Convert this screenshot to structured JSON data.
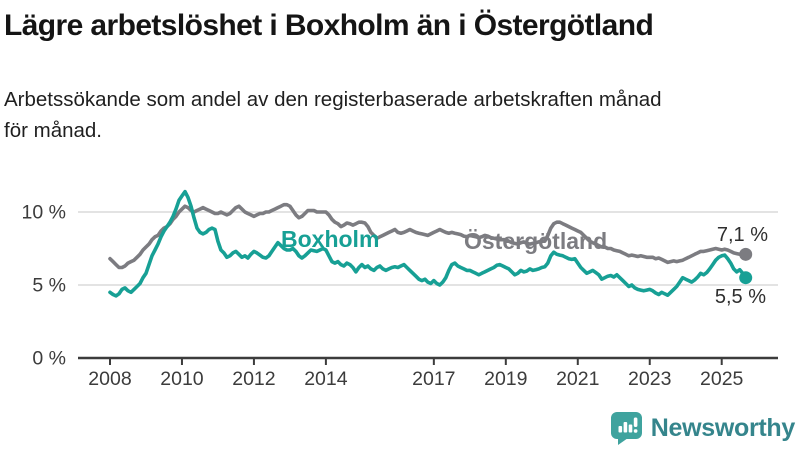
{
  "header": {
    "title": "Lägre arbetslöshet i Boxholm än i Östergötland",
    "subtitle_line1": "Arbetssökande som andel av den registerbaserade arbetskraften månad",
    "subtitle_line2": "för månad."
  },
  "annotations": {
    "boxholm_label": "Boxholm",
    "ostergotland_label": "Östergötland",
    "ostergotland_end_value": "7,1 %",
    "boxholm_end_value": "5,5 %"
  },
  "footer": {
    "brand_name": "Newsworthy",
    "brand_icon": "bar-chart-speech-bubble",
    "brand_icon_color": "#3fa39e",
    "brand_text_color": "#35858c"
  },
  "chart_data": {
    "type": "line",
    "title": "Lägre arbetslöshet i Boxholm än i Östergötland",
    "subtitle": "Arbetssökande som andel av den registerbaserade arbetskraften månad för månad.",
    "x_unit": "month",
    "x_start": "2008-01",
    "x_end": "2025-09",
    "points_per_year": 12,
    "ylim": [
      0,
      12
    ],
    "grid": "horizontal-only",
    "legend_position": "inline-labels",
    "y_ticks": [
      {
        "value": 0,
        "label": "0 %"
      },
      {
        "value": 5,
        "label": "5 %"
      },
      {
        "value": 10,
        "label": "10 %"
      }
    ],
    "x_ticks": [
      {
        "value": 2008,
        "label": "2008"
      },
      {
        "value": 2010,
        "label": "2010"
      },
      {
        "value": 2012,
        "label": "2012"
      },
      {
        "value": 2014,
        "label": "2014"
      },
      {
        "value": 2017,
        "label": "2017"
      },
      {
        "value": 2019,
        "label": "2019"
      },
      {
        "value": 2021,
        "label": "2021"
      },
      {
        "value": 2023,
        "label": "2023"
      },
      {
        "value": 2025,
        "label": "2025"
      }
    ],
    "series": [
      {
        "name": "Östergötland",
        "color": "#7c7c81",
        "end_label": "7,1 %",
        "end_value": 7.1,
        "values": [
          6.8,
          6.6,
          6.4,
          6.2,
          6.2,
          6.3,
          6.5,
          6.6,
          6.7,
          6.9,
          7.1,
          7.4,
          7.6,
          7.8,
          8.1,
          8.3,
          8.4,
          8.7,
          8.9,
          9.0,
          9.2,
          9.5,
          9.7,
          10.0,
          10.2,
          10.4,
          10.3,
          10.1,
          10.0,
          10.1,
          10.2,
          10.3,
          10.2,
          10.1,
          10.0,
          9.9,
          9.9,
          10.0,
          9.9,
          9.8,
          9.9,
          10.1,
          10.3,
          10.4,
          10.2,
          10.0,
          9.9,
          9.8,
          9.7,
          9.8,
          9.9,
          9.9,
          10.0,
          10.0,
          10.1,
          10.2,
          10.3,
          10.4,
          10.5,
          10.5,
          10.4,
          10.1,
          9.8,
          9.6,
          9.7,
          9.9,
          10.1,
          10.1,
          10.1,
          10.0,
          10.0,
          10.0,
          10.0,
          9.8,
          9.5,
          9.3,
          9.2,
          9.0,
          9.1,
          9.25,
          9.2,
          9.1,
          9.2,
          9.3,
          9.3,
          9.25,
          9.0,
          8.6,
          8.4,
          8.2,
          8.3,
          8.4,
          8.5,
          8.6,
          8.7,
          8.8,
          8.6,
          8.55,
          8.6,
          8.7,
          8.8,
          8.7,
          8.6,
          8.55,
          8.5,
          8.45,
          8.4,
          8.5,
          8.6,
          8.7,
          8.8,
          8.7,
          8.6,
          8.55,
          8.6,
          8.55,
          8.5,
          8.45,
          8.35,
          8.3,
          8.4,
          8.35,
          8.3,
          8.25,
          8.3,
          8.4,
          8.35,
          8.25,
          8.2,
          8.15,
          8.1,
          8.1,
          8.1,
          8.0,
          7.9,
          7.85,
          7.8,
          7.9,
          7.95,
          7.85,
          7.8,
          7.85,
          7.9,
          7.95,
          8.0,
          8.0,
          8.4,
          8.9,
          9.2,
          9.3,
          9.3,
          9.2,
          9.1,
          9.0,
          8.9,
          8.8,
          8.7,
          8.6,
          8.4,
          8.2,
          8.0,
          7.9,
          7.8,
          7.7,
          7.6,
          7.6,
          7.5,
          7.5,
          7.4,
          7.35,
          7.3,
          7.2,
          7.1,
          7.0,
          7.05,
          7.0,
          6.95,
          7.0,
          6.95,
          6.9,
          6.9,
          6.9,
          6.8,
          6.85,
          6.75,
          6.65,
          6.55,
          6.6,
          6.65,
          6.6,
          6.65,
          6.7,
          6.8,
          6.9,
          7.0,
          7.1,
          7.2,
          7.3,
          7.3,
          7.35,
          7.4,
          7.45,
          7.5,
          7.45,
          7.4,
          7.45,
          7.4,
          7.3,
          7.2,
          7.15,
          7.1,
          7.05,
          7.1
        ]
      },
      {
        "name": "Boxholm",
        "color": "#17a095",
        "end_label": "5,5 %",
        "end_value": 5.5,
        "values": [
          4.5,
          4.35,
          4.25,
          4.4,
          4.7,
          4.8,
          4.6,
          4.5,
          4.7,
          4.9,
          5.1,
          5.5,
          5.8,
          6.4,
          7.0,
          7.4,
          7.8,
          8.3,
          8.7,
          9.0,
          9.3,
          9.7,
          10.2,
          10.8,
          11.1,
          11.4,
          11.0,
          10.4,
          9.6,
          8.9,
          8.6,
          8.5,
          8.6,
          8.8,
          8.9,
          8.8,
          8.0,
          7.4,
          7.2,
          6.9,
          7.0,
          7.2,
          7.3,
          7.1,
          6.9,
          7.0,
          6.85,
          7.1,
          7.3,
          7.2,
          7.05,
          6.9,
          6.85,
          7.0,
          7.3,
          7.6,
          7.9,
          7.7,
          7.5,
          7.4,
          7.4,
          7.5,
          7.3,
          7.0,
          6.85,
          7.0,
          7.2,
          7.4,
          7.35,
          7.3,
          7.4,
          7.5,
          7.4,
          7.0,
          6.6,
          6.5,
          6.6,
          6.4,
          6.3,
          6.5,
          6.4,
          6.2,
          5.9,
          6.2,
          6.4,
          6.2,
          6.3,
          6.1,
          6.0,
          6.2,
          6.3,
          6.1,
          6.0,
          6.1,
          6.2,
          6.25,
          6.2,
          6.3,
          6.4,
          6.2,
          6.0,
          5.8,
          5.6,
          5.4,
          5.3,
          5.4,
          5.2,
          5.1,
          5.3,
          5.1,
          5.0,
          5.2,
          5.5,
          6.0,
          6.4,
          6.5,
          6.3,
          6.2,
          6.1,
          6.0,
          6.0,
          5.9,
          5.8,
          5.7,
          5.8,
          5.9,
          6.0,
          6.1,
          6.2,
          6.35,
          6.4,
          6.3,
          6.2,
          6.1,
          5.9,
          5.7,
          5.8,
          6.0,
          5.9,
          5.95,
          6.1,
          6.0,
          6.05,
          6.1,
          6.2,
          6.25,
          6.5,
          7.0,
          7.25,
          7.1,
          7.05,
          7.0,
          6.9,
          6.8,
          6.75,
          6.8,
          6.5,
          6.2,
          6.0,
          5.8,
          5.9,
          6.0,
          5.85,
          5.7,
          5.4,
          5.5,
          5.6,
          5.65,
          5.55,
          5.7,
          5.5,
          5.3,
          5.1,
          4.9,
          5.0,
          4.8,
          4.7,
          4.65,
          4.6,
          4.65,
          4.7,
          4.6,
          4.45,
          4.35,
          4.5,
          4.4,
          4.3,
          4.5,
          4.7,
          4.9,
          5.2,
          5.5,
          5.4,
          5.3,
          5.2,
          5.35,
          5.55,
          5.8,
          5.7,
          5.85,
          6.1,
          6.4,
          6.7,
          6.9,
          7.0,
          7.05,
          6.8,
          6.5,
          6.1,
          5.9,
          6.05,
          5.8,
          5.5
        ]
      }
    ]
  }
}
